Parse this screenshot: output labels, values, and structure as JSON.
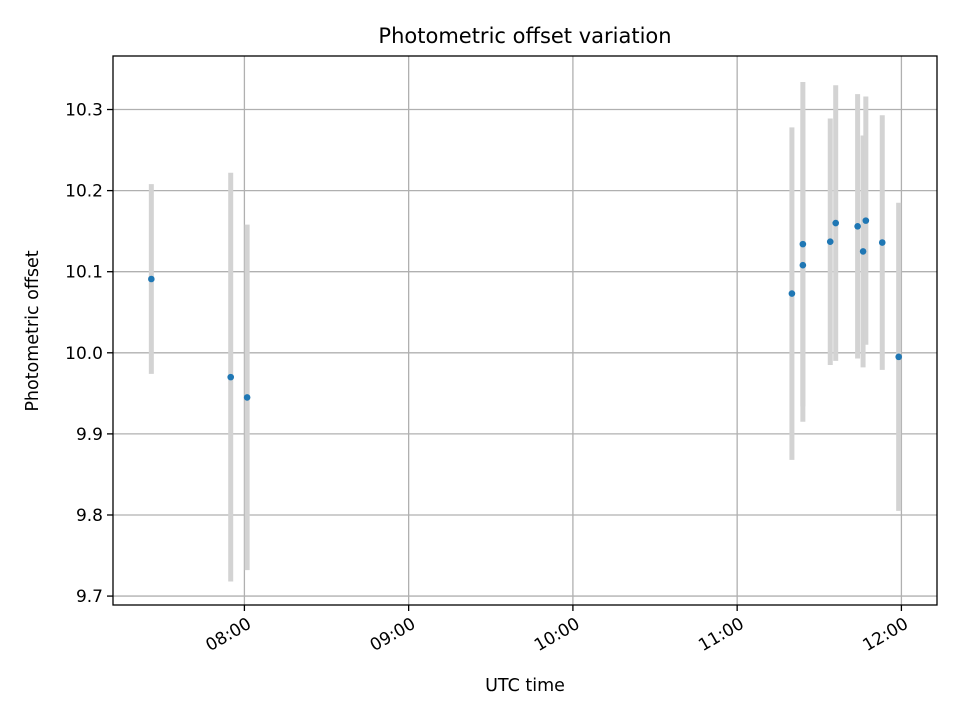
{
  "chart_data": {
    "type": "scatter",
    "title": "Photometric offset variation",
    "xlabel": "UTC time",
    "ylabel": "Photometric offset",
    "x_tick_labels": [
      "08:00",
      "09:00",
      "10:00",
      "11:00",
      "12:00"
    ],
    "x_ticks": [
      "08:00",
      "09:00",
      "10:00",
      "11:00",
      "12:00"
    ],
    "y_ticks": [
      9.7,
      9.8,
      9.9,
      10.0,
      10.1,
      10.2,
      10.3
    ],
    "y_tick_labels": [
      "9.7",
      "9.8",
      "9.9",
      "10.0",
      "10.1",
      "10.2",
      "10.3"
    ],
    "xlim": [
      "07:12",
      "12:13"
    ],
    "ylim": [
      9.689,
      10.366
    ],
    "grid": true,
    "colors": {
      "marker": "#1f77b4",
      "errorbar": "#d3d3d3",
      "grid": "#b0b0b0"
    },
    "series": [
      {
        "points": [
          {
            "x": "07:26",
            "y": 10.091,
            "yerr": 0.117
          },
          {
            "x": "07:55",
            "y": 9.97,
            "yerr": 0.252
          },
          {
            "x": "08:01",
            "y": 9.945,
            "yerr": 0.213
          },
          {
            "x": "11:20",
            "y": 10.073,
            "yerr": 0.205
          },
          {
            "x": "11:24",
            "y": 10.108,
            "yerr": 0.193
          },
          {
            "x": "11:24",
            "y": 10.134,
            "yerr": 0.2
          },
          {
            "x": "11:34",
            "y": 10.137,
            "yerr": 0.152
          },
          {
            "x": "11:36",
            "y": 10.16,
            "yerr": 0.17
          },
          {
            "x": "11:44",
            "y": 10.156,
            "yerr": 0.163
          },
          {
            "x": "11:46",
            "y": 10.125,
            "yerr": 0.143
          },
          {
            "x": "11:47",
            "y": 10.163,
            "yerr": 0.153
          },
          {
            "x": "11:53",
            "y": 10.136,
            "yerr": 0.157
          },
          {
            "x": "11:59",
            "y": 9.995,
            "yerr": 0.19
          }
        ]
      }
    ]
  }
}
